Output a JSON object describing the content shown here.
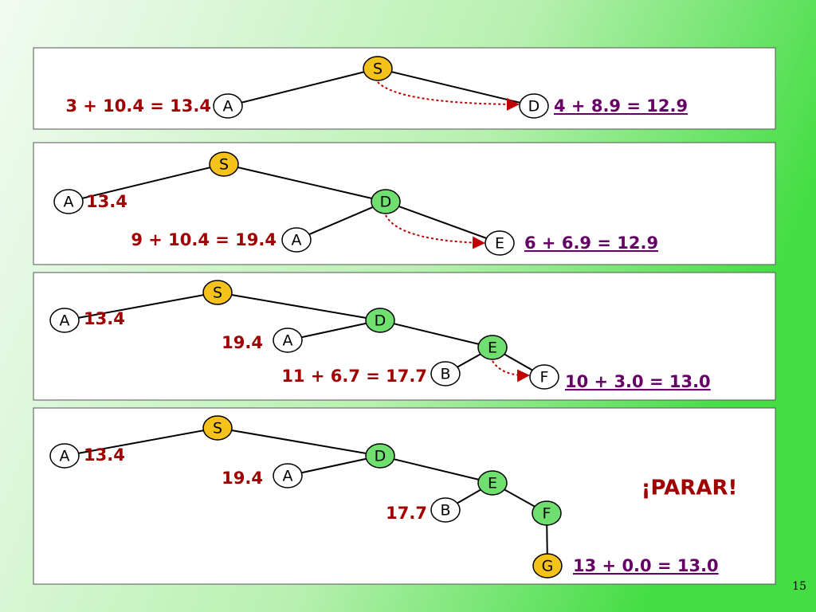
{
  "panels": [
    {
      "nodes": [
        "S",
        "A",
        "D"
      ],
      "labels": [
        "3 + 10.4 = 13.4",
        "4 + 8.9 = 12.9"
      ]
    },
    {
      "nodes": [
        "S",
        "A",
        "D",
        "A",
        "E"
      ],
      "labels": [
        "13.4",
        "9 + 10.4 = 19.4",
        "6 + 6.9 = 12.9"
      ]
    },
    {
      "nodes": [
        "S",
        "A",
        "D",
        "A",
        "E",
        "B",
        "F"
      ],
      "labels": [
        "13.4",
        "19.4",
        "11 + 6.7 = 17.7",
        "10 + 3.0 = 13.0"
      ]
    },
    {
      "nodes": [
        "S",
        "A",
        "D",
        "A",
        "E",
        "B",
        "F",
        "G"
      ],
      "labels": [
        "13.4",
        "19.4",
        "17.7",
        "13 + 0.0 = 13.0"
      ],
      "note": "¡PARAR!"
    }
  ],
  "page_number": "15"
}
